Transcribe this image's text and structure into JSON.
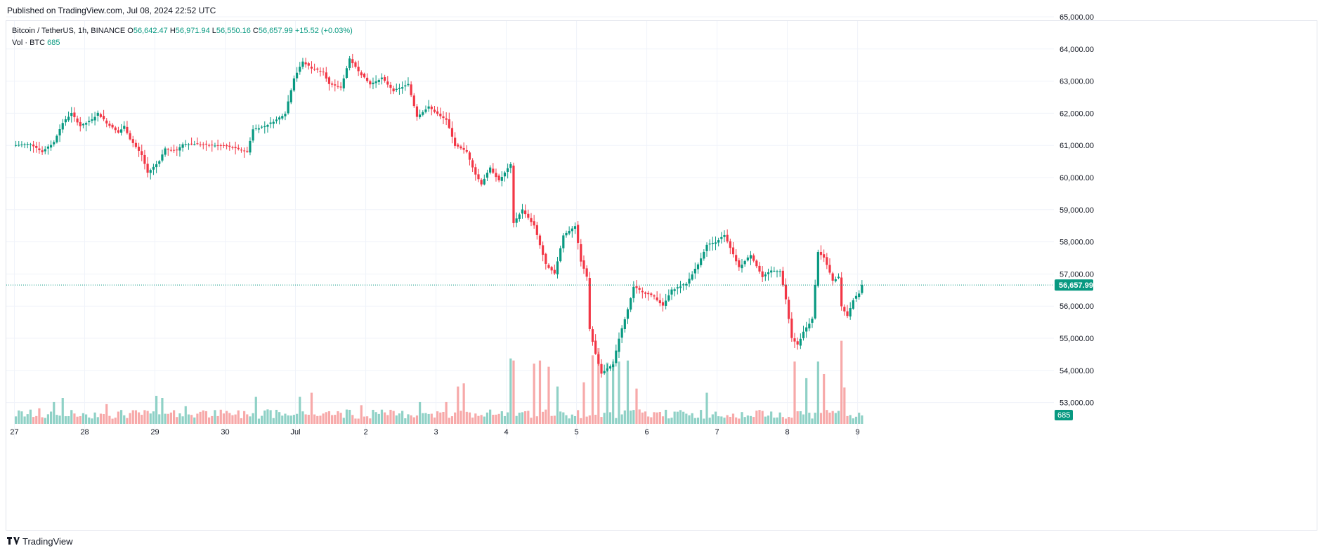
{
  "header": {
    "published": "Published on TradingView.com, Jul 08, 2024 22:52 UTC"
  },
  "legend": {
    "symbol": "Bitcoin / TetherUS, 1h, BINANCE",
    "o_label": "O",
    "o_value": "56,642.47",
    "h_label": "H",
    "h_value": "56,971.94",
    "l_label": "L",
    "l_value": "56,550.16",
    "c_label": "C",
    "c_value": "56,657.99",
    "change": "+15.52 (+0.03%)",
    "vol_label": "Vol · BTC",
    "vol_value": "685"
  },
  "footer": {
    "brand": "TradingView"
  },
  "colors": {
    "up": "#089981",
    "down": "#f23645",
    "vol_up": "#8fd1c6",
    "vol_down": "#f7a9a9",
    "grid": "#f0f3fa"
  },
  "chart_data": {
    "type": "candlestick",
    "interval": "1h",
    "ylim": [
      52600,
      65200
    ],
    "y_ticks": [
      "65,000.00",
      "64,000.00",
      "63,000.00",
      "62,000.00",
      "61,000.00",
      "60,000.00",
      "59,000.00",
      "58,000.00",
      "57,000.00",
      "56,000.00",
      "55,000.00",
      "54,000.00",
      "53,000.00"
    ],
    "y_tick_values": [
      65000,
      64000,
      63000,
      62000,
      61000,
      60000,
      59000,
      58000,
      57000,
      56000,
      55000,
      54000,
      53000
    ],
    "x_ticks": [
      "27",
      "28",
      "29",
      "30",
      "Jul",
      "2",
      "3",
      "4",
      "5",
      "6",
      "7",
      "8",
      "9"
    ],
    "x_tick_hours": [
      0,
      24,
      48,
      72,
      96,
      120,
      144,
      168,
      192,
      216,
      240,
      264,
      288
    ],
    "last_price_label": "56,657.99",
    "last_price": 56657.99,
    "last_volume_label": "685",
    "key_points": [
      {
        "h": 0,
        "p": 61000
      },
      {
        "h": 6,
        "p": 61050
      },
      {
        "h": 10,
        "p": 60800
      },
      {
        "h": 14,
        "p": 61100
      },
      {
        "h": 17,
        "p": 61700
      },
      {
        "h": 20,
        "p": 62000
      },
      {
        "h": 23,
        "p": 61600
      },
      {
        "h": 27,
        "p": 61800
      },
      {
        "h": 29,
        "p": 62000
      },
      {
        "h": 32,
        "p": 61700
      },
      {
        "h": 36,
        "p": 61400
      },
      {
        "h": 38,
        "p": 61600
      },
      {
        "h": 40,
        "p": 61200
      },
      {
        "h": 44,
        "p": 60700
      },
      {
        "h": 46,
        "p": 60150
      },
      {
        "h": 50,
        "p": 60500
      },
      {
        "h": 52,
        "p": 60900
      },
      {
        "h": 56,
        "p": 60850
      },
      {
        "h": 58,
        "p": 61050
      },
      {
        "h": 62,
        "p": 61050
      },
      {
        "h": 68,
        "p": 61000
      },
      {
        "h": 72,
        "p": 61000
      },
      {
        "h": 76,
        "p": 60900
      },
      {
        "h": 80,
        "p": 60800
      },
      {
        "h": 82,
        "p": 61500
      },
      {
        "h": 86,
        "p": 61600
      },
      {
        "h": 90,
        "p": 61800
      },
      {
        "h": 93,
        "p": 62000
      },
      {
        "h": 96,
        "p": 63100
      },
      {
        "h": 99,
        "p": 63600
      },
      {
        "h": 102,
        "p": 63400
      },
      {
        "h": 106,
        "p": 63300
      },
      {
        "h": 108,
        "p": 62900
      },
      {
        "h": 112,
        "p": 62800
      },
      {
        "h": 115,
        "p": 63700
      },
      {
        "h": 118,
        "p": 63300
      },
      {
        "h": 122,
        "p": 62900
      },
      {
        "h": 126,
        "p": 63100
      },
      {
        "h": 130,
        "p": 62700
      },
      {
        "h": 135,
        "p": 62900
      },
      {
        "h": 138,
        "p": 61900
      },
      {
        "h": 142,
        "p": 62200
      },
      {
        "h": 146,
        "p": 61900
      },
      {
        "h": 148,
        "p": 61800
      },
      {
        "h": 151,
        "p": 61000
      },
      {
        "h": 155,
        "p": 60800
      },
      {
        "h": 158,
        "p": 60100
      },
      {
        "h": 160,
        "p": 59800
      },
      {
        "h": 163,
        "p": 60300
      },
      {
        "h": 166,
        "p": 59900
      },
      {
        "h": 170,
        "p": 60400
      },
      {
        "h": 171,
        "p": 58600
      },
      {
        "h": 174,
        "p": 59000
      },
      {
        "h": 178,
        "p": 58500
      },
      {
        "h": 182,
        "p": 57300
      },
      {
        "h": 185,
        "p": 57000
      },
      {
        "h": 188,
        "p": 58200
      },
      {
        "h": 192,
        "p": 58500
      },
      {
        "h": 194,
        "p": 57400
      },
      {
        "h": 196,
        "p": 56900
      },
      {
        "h": 197,
        "p": 55300
      },
      {
        "h": 199,
        "p": 54500
      },
      {
        "h": 201,
        "p": 53900
      },
      {
        "h": 205,
        "p": 54200
      },
      {
        "h": 207,
        "p": 55000
      },
      {
        "h": 210,
        "p": 55900
      },
      {
        "h": 212,
        "p": 56600
      },
      {
        "h": 216,
        "p": 56400
      },
      {
        "h": 219,
        "p": 56300
      },
      {
        "h": 222,
        "p": 56000
      },
      {
        "h": 225,
        "p": 56500
      },
      {
        "h": 230,
        "p": 56700
      },
      {
        "h": 234,
        "p": 57300
      },
      {
        "h": 237,
        "p": 57900
      },
      {
        "h": 240,
        "p": 58000
      },
      {
        "h": 243,
        "p": 58200
      },
      {
        "h": 246,
        "p": 57600
      },
      {
        "h": 248,
        "p": 57200
      },
      {
        "h": 252,
        "p": 57600
      },
      {
        "h": 256,
        "p": 56900
      },
      {
        "h": 259,
        "p": 57100
      },
      {
        "h": 262,
        "p": 57100
      },
      {
        "h": 264,
        "p": 56200
      },
      {
        "h": 266,
        "p": 55000
      },
      {
        "h": 268,
        "p": 54800
      },
      {
        "h": 270,
        "p": 55200
      },
      {
        "h": 273,
        "p": 55600
      },
      {
        "h": 275,
        "p": 57700
      },
      {
        "h": 277,
        "p": 57500
      },
      {
        "h": 280,
        "p": 56800
      },
      {
        "h": 282,
        "p": 56900
      },
      {
        "h": 283,
        "p": 56000
      },
      {
        "h": 285,
        "p": 55700
      },
      {
        "h": 287,
        "p": 56200
      },
      {
        "h": 289,
        "p": 56400
      },
      {
        "h": 290,
        "p": 56658
      }
    ],
    "volume_spikes": [
      {
        "h": 8,
        "v": 1500
      },
      {
        "h": 13,
        "v": 2100
      },
      {
        "h": 16,
        "v": 2500
      },
      {
        "h": 31,
        "v": 1900
      },
      {
        "h": 48,
        "v": 2700
      },
      {
        "h": 50,
        "v": 2500
      },
      {
        "h": 58,
        "v": 1700
      },
      {
        "h": 82,
        "v": 2600
      },
      {
        "h": 97,
        "v": 2600
      },
      {
        "h": 101,
        "v": 3000
      },
      {
        "h": 118,
        "v": 1800
      },
      {
        "h": 138,
        "v": 2100
      },
      {
        "h": 147,
        "v": 2100
      },
      {
        "h": 151,
        "v": 3600
      },
      {
        "h": 153,
        "v": 3900
      },
      {
        "h": 169,
        "v": 6300
      },
      {
        "h": 170,
        "v": 6100
      },
      {
        "h": 177,
        "v": 5800
      },
      {
        "h": 179,
        "v": 6100
      },
      {
        "h": 182,
        "v": 5500
      },
      {
        "h": 185,
        "v": 3600
      },
      {
        "h": 194,
        "v": 4000
      },
      {
        "h": 197,
        "v": 6600
      },
      {
        "h": 199,
        "v": 7300
      },
      {
        "h": 202,
        "v": 5900
      },
      {
        "h": 204,
        "v": 6000
      },
      {
        "h": 206,
        "v": 6000
      },
      {
        "h": 209,
        "v": 6100
      },
      {
        "h": 212,
        "v": 3400
      },
      {
        "h": 236,
        "v": 3000
      },
      {
        "h": 266,
        "v": 6000
      },
      {
        "h": 270,
        "v": 4400
      },
      {
        "h": 274,
        "v": 6000
      },
      {
        "h": 276,
        "v": 4800
      },
      {
        "h": 282,
        "v": 8000
      },
      {
        "h": 283,
        "v": 3500
      }
    ]
  }
}
